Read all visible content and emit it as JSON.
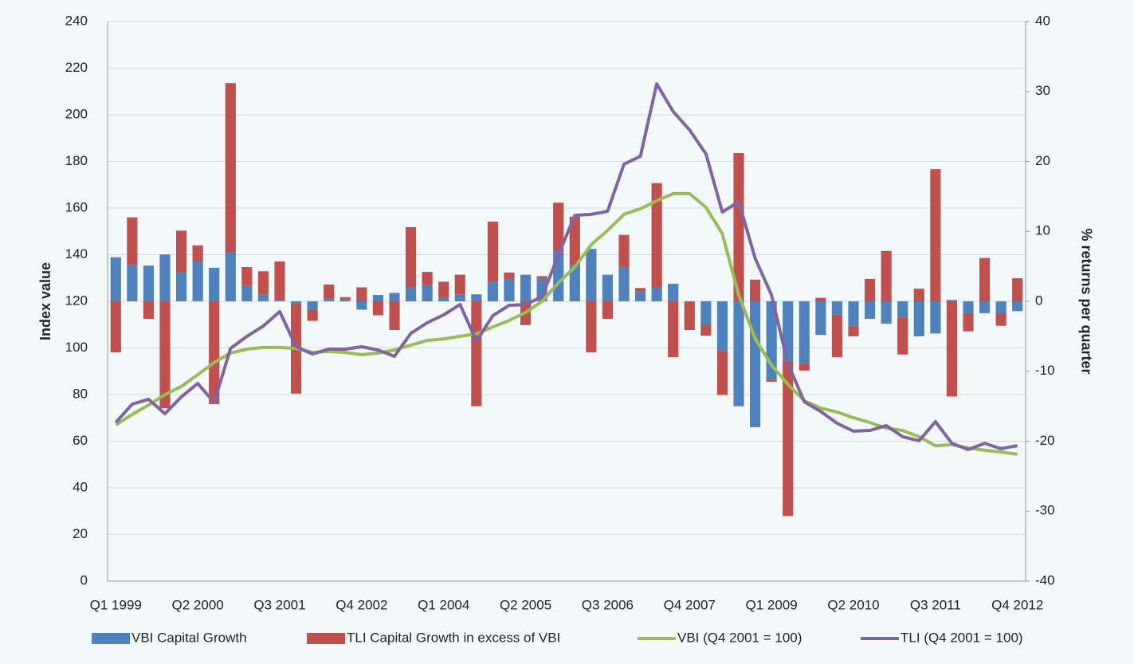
{
  "chart_data": {
    "type": "combo",
    "categories": [
      "Q1 1999",
      null,
      null,
      null,
      null,
      "Q2 2000",
      null,
      null,
      null,
      null,
      "Q3 2001",
      null,
      null,
      null,
      null,
      "Q4 2002",
      null,
      null,
      null,
      null,
      "Q1 2004",
      null,
      null,
      null,
      null,
      "Q2 2005",
      null,
      null,
      null,
      null,
      "Q3 2006",
      null,
      null,
      null,
      null,
      "Q4 2007",
      null,
      null,
      null,
      null,
      "Q1 2009",
      null,
      null,
      null,
      null,
      "Q2 2010",
      null,
      null,
      null,
      null,
      "Q3 2011",
      null,
      null,
      null,
      null,
      "Q4 2012"
    ],
    "ylabel": "Index value",
    "y2label": "% returns per quarter",
    "ylim": [
      0,
      240
    ],
    "yticks": [
      0,
      20,
      40,
      60,
      80,
      100,
      120,
      140,
      160,
      180,
      200,
      220,
      240
    ],
    "y2lim": [
      -40,
      40
    ],
    "y2ticks": [
      -40,
      -30,
      -20,
      -10,
      0,
      10,
      20,
      30,
      40
    ],
    "grid": true,
    "legend": "bottom",
    "series": [
      {
        "name": "VBI Capital Growth",
        "kind": "bar",
        "axis": "y2",
        "color": "#4f81bd",
        "values": [
          6.3,
          5.2,
          5.1,
          6.7,
          4.1,
          5.7,
          4.8,
          7.0,
          2.2,
          1.0,
          0.2,
          -0.3,
          -1.2,
          0.4,
          0.3,
          -1.2,
          0.9,
          1.2,
          2.0,
          2.4,
          0.6,
          1.0,
          1.0,
          2.8,
          3.2,
          3.8,
          3.2,
          7.1,
          5.2,
          7.5,
          3.8,
          4.8,
          1.4,
          2.0,
          2.5,
          0,
          -3.3,
          -7.1,
          -15.0,
          -18.0,
          -11.2,
          -8.5,
          -8.8,
          -4.8,
          -1.9,
          -3.5,
          -2.5,
          -3.2,
          -2.3,
          -5.0,
          -4.6,
          0.2,
          -1.7,
          -1.7,
          -1.7,
          -1.4
        ]
      },
      {
        "name": "TLI Capital Growth in excess of VBI",
        "kind": "bar",
        "axis": "y2",
        "color": "#c0504d",
        "values": [
          -7.3,
          6.8,
          -2.5,
          -15.3,
          6.0,
          2.3,
          -14.7,
          24.2,
          2.7,
          3.3,
          5.5,
          -12.9,
          -1.6,
          2.0,
          0.3,
          2.0,
          -2.0,
          -4.1,
          8.6,
          1.8,
          2.2,
          2.8,
          -15.0,
          8.6,
          0.9,
          -3.4,
          0.4,
          7.0,
          6.9,
          -7.3,
          -2.5,
          4.7,
          0.5,
          14.9,
          -8.0,
          -4.1,
          -1.6,
          -6.3,
          21.2,
          3.1,
          -0.3,
          -22.2,
          -1.1,
          0.5,
          -6.1,
          -1.5,
          3.2,
          7.2,
          -5.3,
          1.8,
          18.9,
          -13.6,
          -2.6,
          6.2,
          -1.8,
          3.3
        ]
      },
      {
        "name": "VBI (Q4 2001 = 100)",
        "kind": "line",
        "color": "#9bbb59",
        "values": [
          67,
          71.5,
          75.5,
          80,
          83.5,
          88.5,
          93.7,
          97.8,
          99.5,
          100.2,
          100.2,
          99.8,
          98.1,
          98.5,
          98.1,
          97.1,
          97.8,
          99.1,
          101.2,
          103.2,
          103.9,
          105,
          106,
          109,
          111.8,
          115.2,
          120,
          127.9,
          134.7,
          144.3,
          150.4,
          157.3,
          159.7,
          163.1,
          166.2,
          166.2,
          160.3,
          149,
          122.7,
          104,
          92.6,
          84.4,
          77.3,
          74.2,
          72.5,
          70.1,
          68,
          65.6,
          64.6,
          61.9,
          58.1,
          58.5,
          57.1,
          56.1,
          55.4,
          54.4
        ]
      },
      {
        "name": "TLI (Q4 2001 = 100)",
        "kind": "line",
        "color": "#8064a2",
        "values": [
          68,
          75.9,
          78,
          71.8,
          79,
          84.8,
          76.6,
          99.8,
          105,
          109.4,
          115.6,
          100.5,
          97.4,
          99.5,
          99.5,
          100.5,
          99.1,
          96.4,
          106.3,
          110.8,
          114.2,
          118.6,
          102.9,
          113.8,
          118.3,
          118.6,
          122,
          139.8,
          156.9,
          157.3,
          158.6,
          178.8,
          182.2,
          213.3,
          201.4,
          193.5,
          183.2,
          158.3,
          162.7,
          138.5,
          122.7,
          93.3,
          76.9,
          72.8,
          67.7,
          64.3,
          64.6,
          66.7,
          61.9,
          60.2,
          68.4,
          59.1,
          56.4,
          59.1,
          56.8,
          58.1
        ]
      }
    ]
  }
}
